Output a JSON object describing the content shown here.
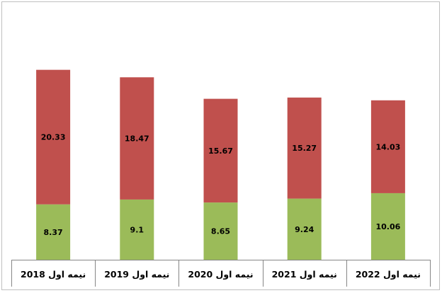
{
  "chart_data": {
    "type": "bar",
    "stacked": true,
    "categories": [
      "نیمه اول 2018",
      "نیمه اول 2019",
      "نیمه اول 2020",
      "نیمه اول 2021",
      "نیمه اول 2022"
    ],
    "series": [
      {
        "values": [
          8.37,
          9.1,
          8.65,
          9.24,
          10.06
        ],
        "color": "#9bbb59"
      },
      {
        "values": [
          20.33,
          18.47,
          15.67,
          15.27,
          14.03
        ],
        "color": "#c0504d"
      }
    ],
    "value_labels": [
      [
        "8.37",
        "9.1",
        "8.65",
        "9.24",
        "10.06"
      ],
      [
        "20.33",
        "18.47",
        "15.67",
        "15.27",
        "14.03"
      ]
    ],
    "title": "",
    "xlabel": "",
    "ylabel": "",
    "ylim": [
      0,
      31
    ],
    "grid": false,
    "legend": "none"
  }
}
